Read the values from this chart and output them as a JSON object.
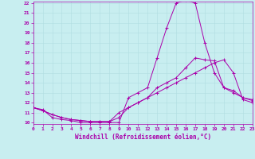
{
  "xlabel": "Windchill (Refroidissement éolien,°C)",
  "xlim": [
    0,
    23
  ],
  "ylim": [
    10,
    22
  ],
  "yticks": [
    10,
    11,
    12,
    13,
    14,
    15,
    16,
    17,
    18,
    19,
    20,
    21,
    22
  ],
  "xticks": [
    0,
    1,
    2,
    3,
    4,
    5,
    6,
    7,
    8,
    9,
    10,
    11,
    12,
    13,
    14,
    15,
    16,
    17,
    18,
    19,
    20,
    21,
    22,
    23
  ],
  "bg_color": "#c8eef0",
  "grid_color": "#b0dde0",
  "line_color": "#aa00aa",
  "series": [
    [
      11.5,
      11.3,
      10.5,
      10.3,
      10.2,
      10.0,
      10.0,
      10.0,
      10.0,
      10.0,
      12.5,
      13.0,
      13.5,
      16.5,
      19.5,
      22.0,
      22.3,
      22.0,
      18.0,
      15.0,
      13.5,
      13.2,
      12.5,
      12.3
    ],
    [
      11.5,
      11.2,
      10.8,
      10.5,
      10.3,
      10.2,
      10.1,
      10.1,
      10.1,
      10.5,
      11.5,
      12.0,
      12.5,
      13.5,
      14.0,
      14.5,
      15.5,
      16.5,
      16.3,
      16.2,
      13.5,
      13.0,
      12.5,
      12.2
    ],
    [
      11.5,
      11.2,
      10.8,
      10.5,
      10.3,
      10.2,
      10.1,
      10.1,
      10.1,
      11.0,
      11.5,
      12.0,
      12.5,
      13.0,
      13.5,
      14.0,
      14.5,
      15.0,
      15.5,
      16.0,
      16.3,
      15.0,
      12.3,
      12.0
    ]
  ]
}
